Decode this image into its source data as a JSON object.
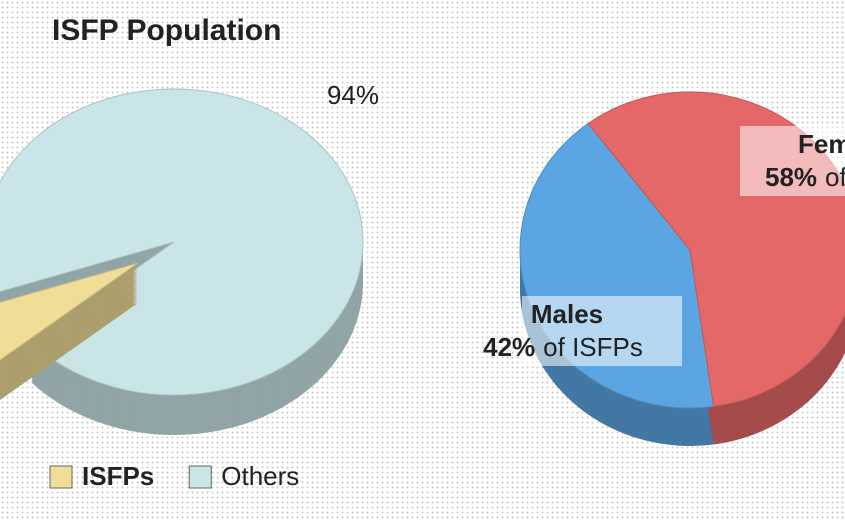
{
  "chart_data": [
    {
      "type": "pie",
      "title": "ISFP Population",
      "categories": [
        "ISFPs",
        "Others"
      ],
      "values": [
        6,
        94
      ],
      "value_labels": [
        null,
        "94%"
      ],
      "colors": [
        "#f0dd98",
        "#c9e5e7"
      ],
      "explode": [
        true,
        false
      ],
      "legend": true
    },
    {
      "type": "pie",
      "categories": [
        "Males",
        "Females"
      ],
      "values": [
        42,
        58
      ],
      "value_labels": [
        "42%",
        "58%"
      ],
      "label_suffix": "of ISFPs",
      "colors": [
        "#5ba6e2",
        "#e46868"
      ],
      "explode": [
        false,
        false
      ],
      "legend": false
    }
  ]
}
